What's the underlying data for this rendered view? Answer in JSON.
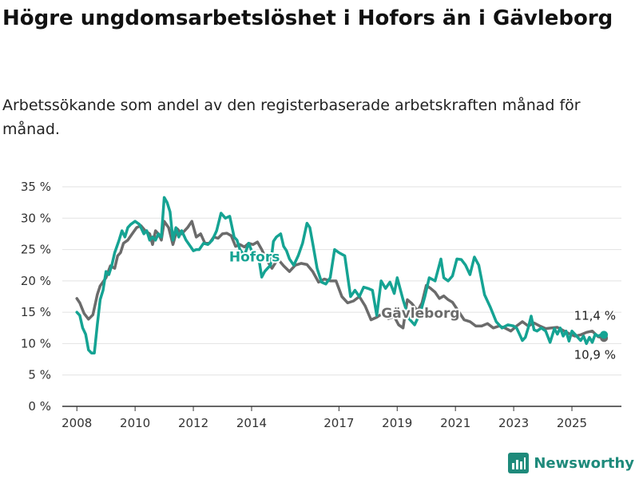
{
  "title": "Högre ungdomsarbetslöshet i Hofors än i Gävleborg",
  "subtitle": "Arbetssökande som andel av den registerbaserade arbetskraften månad för månad.",
  "brand": "Newsworthy",
  "colors": {
    "hofors": "#15a393",
    "gavleborg": "#6b6b6b",
    "grid": "#e2e2e2",
    "axis": "#333333"
  },
  "chart_data": {
    "type": "line",
    "title": "Högre ungdomsarbetslöshet i Hofors än i Gävleborg",
    "xlabel": "",
    "ylabel": "",
    "xlim": [
      2007.5,
      2026.7
    ],
    "ylim": [
      0,
      35
    ],
    "y_ticks": [
      0,
      5,
      10,
      15,
      20,
      25,
      30,
      35
    ],
    "y_tick_labels": [
      "0 %",
      "5 %",
      "10 %",
      "15 %",
      "20 %",
      "25 %",
      "30 %",
      "35 %"
    ],
    "x_ticks": [
      2008,
      2010,
      2012,
      2014,
      2017,
      2019,
      2021,
      2023,
      2025
    ],
    "x_tick_labels": [
      "2008",
      "2010",
      "2012",
      "2014",
      "2017",
      "2019",
      "2021",
      "2023",
      "2025"
    ],
    "series": [
      {
        "name": "Gävleborg",
        "label": "Gävleborg",
        "end_label": "10,9 %",
        "x": [
          2008.0,
          2008.1,
          2008.25,
          2008.4,
          2008.55,
          2008.7,
          2008.8,
          2009.0,
          2009.15,
          2009.3,
          2009.4,
          2009.5,
          2009.6,
          2009.75,
          2009.9,
          2010.05,
          2010.2,
          2010.35,
          2010.5,
          2010.6,
          2010.7,
          2010.8,
          2010.9,
          2011.0,
          2011.15,
          2011.3,
          2011.45,
          2011.6,
          2011.8,
          2011.95,
          2012.1,
          2012.25,
          2012.4,
          2012.55,
          2012.7,
          2012.85,
          2013.0,
          2013.15,
          2013.3,
          2013.45,
          2013.6,
          2013.75,
          2013.9,
          2014.05,
          2014.2,
          2014.35,
          2014.5,
          2014.7,
          2014.9,
          2015.1,
          2015.3,
          2015.5,
          2015.7,
          2015.9,
          2016.1,
          2016.3,
          2016.5,
          2016.7,
          2016.9,
          2017.1,
          2017.3,
          2017.5,
          2017.7,
          2017.9,
          2018.1,
          2018.3,
          2018.5,
          2018.7,
          2018.9,
          2019.05,
          2019.2,
          2019.35,
          2019.5,
          2019.7,
          2019.85,
          2020.0,
          2020.15,
          2020.3,
          2020.45,
          2020.6,
          2020.75,
          2020.9,
          2021.1,
          2021.3,
          2021.5,
          2021.7,
          2021.9,
          2022.1,
          2022.3,
          2022.5,
          2022.7,
          2022.9,
          2023.1,
          2023.3,
          2023.5,
          2023.7,
          2023.9,
          2024.1,
          2024.3,
          2024.5,
          2024.7,
          2024.9,
          2025.1,
          2025.3,
          2025.5,
          2025.7,
          2025.9,
          2026.1
        ],
        "values": [
          17.2,
          16.5,
          14.8,
          13.9,
          14.6,
          17.8,
          19.2,
          20.5,
          22.4,
          22.0,
          24.0,
          24.5,
          26.0,
          26.5,
          27.5,
          28.5,
          28.8,
          28.0,
          27.5,
          25.8,
          28.0,
          27.5,
          26.5,
          29.5,
          28.5,
          25.8,
          28.3,
          27.5,
          28.5,
          29.5,
          27.0,
          27.5,
          26.0,
          26.0,
          27.0,
          26.8,
          27.5,
          27.6,
          27.2,
          25.5,
          25.8,
          25.4,
          26.0,
          25.8,
          26.2,
          25.0,
          23.5,
          22.0,
          23.5,
          22.4,
          21.5,
          22.5,
          22.8,
          22.6,
          21.5,
          19.8,
          20.3,
          20.0,
          20.0,
          17.5,
          16.5,
          16.8,
          17.5,
          16.0,
          13.8,
          14.2,
          14.8,
          14.0,
          14.3,
          13.0,
          12.5,
          17.0,
          16.4,
          15.2,
          16.5,
          19.3,
          18.8,
          18.2,
          17.2,
          17.6,
          17.0,
          16.6,
          15.2,
          13.8,
          13.5,
          12.8,
          12.8,
          13.2,
          12.5,
          12.8,
          12.5,
          12.0,
          12.8,
          13.5,
          12.8,
          13.3,
          12.8,
          12.4,
          12.5,
          12.6,
          12.1,
          11.6,
          11.2,
          11.4,
          11.8,
          12.0,
          11.1,
          10.9
        ]
      },
      {
        "name": "Hofors",
        "label": "Hofors",
        "end_label": "11,4 %",
        "x": [
          2008.0,
          2008.1,
          2008.2,
          2008.3,
          2008.4,
          2008.5,
          2008.6,
          2008.7,
          2008.8,
          2008.9,
          2009.0,
          2009.1,
          2009.2,
          2009.3,
          2009.45,
          2009.55,
          2009.65,
          2009.75,
          2009.85,
          2010.0,
          2010.15,
          2010.3,
          2010.4,
          2010.5,
          2010.6,
          2010.7,
          2010.8,
          2010.9,
          2011.0,
          2011.1,
          2011.2,
          2011.3,
          2011.4,
          2011.5,
          2011.6,
          2011.75,
          2011.9,
          2012.0,
          2012.1,
          2012.2,
          2012.35,
          2012.5,
          2012.65,
          2012.8,
          2012.95,
          2013.1,
          2013.25,
          2013.4,
          2013.5,
          2013.6,
          2013.75,
          2013.9,
          2014.0,
          2014.15,
          2014.25,
          2014.35,
          2014.45,
          2014.55,
          2014.65,
          2014.75,
          2014.85,
          2015.0,
          2015.1,
          2015.2,
          2015.3,
          2015.45,
          2015.6,
          2015.75,
          2015.9,
          2016.0,
          2016.1,
          2016.25,
          2016.4,
          2016.55,
          2016.7,
          2016.85,
          2017.0,
          2017.2,
          2017.4,
          2017.55,
          2017.7,
          2017.85,
          2018.0,
          2018.15,
          2018.3,
          2018.45,
          2018.6,
          2018.75,
          2018.9,
          2019.0,
          2019.2,
          2019.4,
          2019.6,
          2019.8,
          2019.95,
          2020.1,
          2020.3,
          2020.5,
          2020.6,
          2020.75,
          2020.9,
          2021.05,
          2021.2,
          2021.35,
          2021.5,
          2021.65,
          2021.8,
          2022.0,
          2022.2,
          2022.4,
          2022.6,
          2022.8,
          2023.0,
          2023.1,
          2023.2,
          2023.3,
          2023.4,
          2023.5,
          2023.6,
          2023.7,
          2023.8,
          2023.95,
          2024.1,
          2024.25,
          2024.4,
          2024.5,
          2024.6,
          2024.7,
          2024.8,
          2024.9,
          2025.0,
          2025.1,
          2025.2,
          2025.3,
          2025.4,
          2025.5,
          2025.6,
          2025.7,
          2025.8,
          2025.9,
          2026.0,
          2026.1
        ],
        "values": [
          15.0,
          14.5,
          12.5,
          11.5,
          9.0,
          8.5,
          8.5,
          13.0,
          17.0,
          18.5,
          21.5,
          21.0,
          22.5,
          24.5,
          26.5,
          28.0,
          27.0,
          28.5,
          29.0,
          29.5,
          29.0,
          27.5,
          28.0,
          26.5,
          27.0,
          26.5,
          27.5,
          27.0,
          33.3,
          32.5,
          31.0,
          26.5,
          28.5,
          27.0,
          28.0,
          26.5,
          25.5,
          24.8,
          25.0,
          25.0,
          26.0,
          25.8,
          26.5,
          28.0,
          30.8,
          30.0,
          30.3,
          27.0,
          26.5,
          25.0,
          24.0,
          26.0,
          24.8,
          24.5,
          23.5,
          20.6,
          21.5,
          22.0,
          22.5,
          26.3,
          27.0,
          27.5,
          25.5,
          24.8,
          23.5,
          22.5,
          24.0,
          26.0,
          29.2,
          28.5,
          26.0,
          22.0,
          19.8,
          19.5,
          20.5,
          25.0,
          24.5,
          24.0,
          17.5,
          18.5,
          17.5,
          19.0,
          18.8,
          18.5,
          14.5,
          20.0,
          18.8,
          19.8,
          18.0,
          20.5,
          17.0,
          14.0,
          13.0,
          15.0,
          17.5,
          20.5,
          20.0,
          23.5,
          20.5,
          20.0,
          20.8,
          23.5,
          23.4,
          22.5,
          21.0,
          23.8,
          22.5,
          17.8,
          15.8,
          13.5,
          12.5,
          13.0,
          12.8,
          12.5,
          11.5,
          10.5,
          11.0,
          12.5,
          14.4,
          12.2,
          12.0,
          12.5,
          12.0,
          10.2,
          12.4,
          11.5,
          12.5,
          11.2,
          12.0,
          10.4,
          12.0,
          11.5,
          11.0,
          10.5,
          11.2,
          10.0,
          11.0,
          10.2,
          11.5,
          11.2,
          11.4,
          11.4
        ]
      }
    ]
  }
}
